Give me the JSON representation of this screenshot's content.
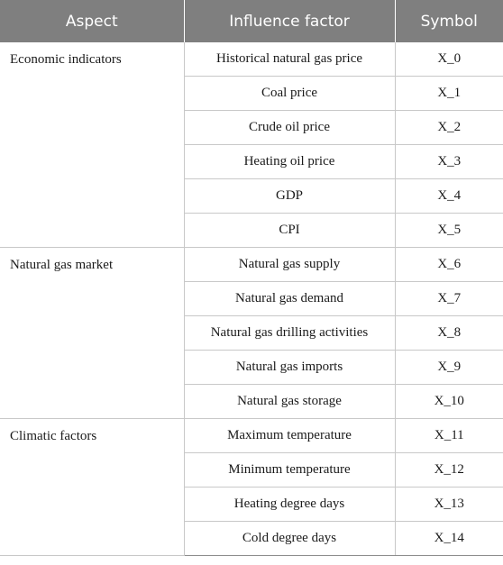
{
  "table": {
    "headers": [
      "Aspect",
      "Influence factor",
      "Symbol"
    ],
    "groups": [
      {
        "aspect": "Economic indicators",
        "rows": [
          {
            "factor": "Historical natural gas price",
            "symbol": "X_0"
          },
          {
            "factor": "Coal price",
            "symbol": "X_1"
          },
          {
            "factor": "Crude oil price",
            "symbol": "X_2"
          },
          {
            "factor": "Heating oil price",
            "symbol": "X_3"
          },
          {
            "factor": "GDP",
            "symbol": "X_4"
          },
          {
            "factor": "CPI",
            "symbol": "X_5"
          }
        ]
      },
      {
        "aspect": "Natural gas market",
        "rows": [
          {
            "factor": "Natural gas supply",
            "symbol": "X_6"
          },
          {
            "factor": "Natural gas demand",
            "symbol": "X_7"
          },
          {
            "factor": "Natural gas drilling activities",
            "symbol": "X_8"
          },
          {
            "factor": "Natural gas imports",
            "symbol": "X_9"
          },
          {
            "factor": "Natural gas storage",
            "symbol": "X_10"
          }
        ]
      },
      {
        "aspect": "Climatic factors",
        "rows": [
          {
            "factor": "Maximum temperature",
            "symbol": "X_11"
          },
          {
            "factor": "Minimum temperature",
            "symbol": "X_12"
          },
          {
            "factor": "Heating degree days",
            "symbol": "X_13"
          },
          {
            "factor": "Cold degree days",
            "symbol": "X_14"
          }
        ]
      }
    ]
  }
}
